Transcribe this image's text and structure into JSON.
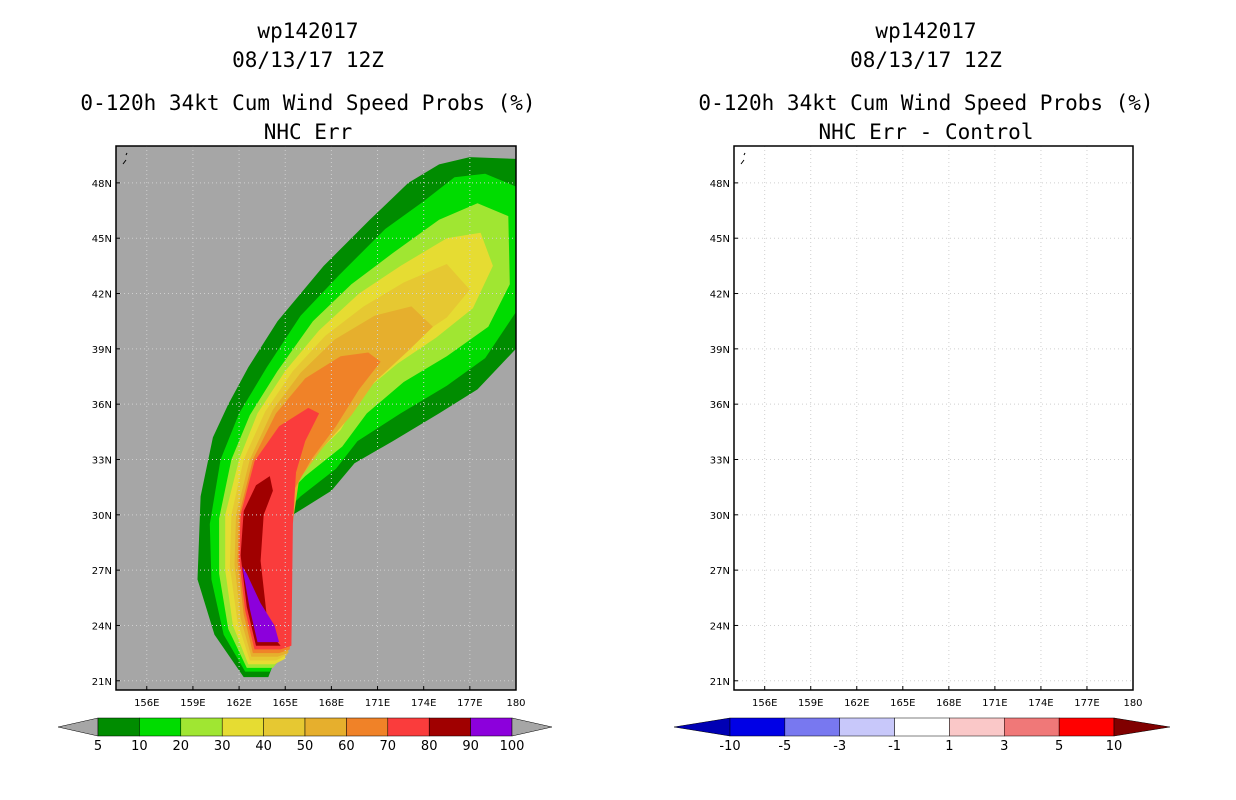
{
  "left_panel": {
    "title_storm": "wp142017",
    "title_time": "08/13/17 12Z",
    "title_product": "0-120h 34kt Cum Wind Speed Probs (%)",
    "subtitle": "NHC Err"
  },
  "right_panel": {
    "title_storm": "wp142017",
    "title_time": "08/13/17 12Z",
    "title_product": "0-120h 34kt Cum Wind Speed Probs (%)",
    "subtitle": "NHC Err - Control"
  },
  "chart_data": [
    {
      "type": "heatmap",
      "title": "0-120h 34kt Cum Wind Speed Probs (%)",
      "subtitle": "NHC Err",
      "xlabel": "",
      "ylabel": "",
      "xlim": [
        154,
        180
      ],
      "ylim": [
        20.5,
        50
      ],
      "x_ticks": [
        156,
        159,
        162,
        165,
        168,
        171,
        174,
        177,
        180
      ],
      "x_tick_labels": [
        "156E",
        "159E",
        "162E",
        "165E",
        "168E",
        "171E",
        "174E",
        "177E",
        "180"
      ],
      "y_ticks": [
        21,
        24,
        27,
        30,
        33,
        36,
        39,
        42,
        45,
        48
      ],
      "y_tick_labels": [
        "21N",
        "24N",
        "27N",
        "30N",
        "33N",
        "36N",
        "39N",
        "42N",
        "45N",
        "48N"
      ],
      "grid": true,
      "background_color": "#a6a6a6",
      "colorbar": {
        "labels": [
          "5",
          "10",
          "20",
          "30",
          "40",
          "50",
          "60",
          "70",
          "80",
          "90",
          "100"
        ],
        "colors": [
          "#008c00",
          "#00dc00",
          "#a0e632",
          "#e6dc32",
          "#e6c832",
          "#e6af2d",
          "#f08228",
          "#fa3c3c",
          "#a00000",
          "#8c00dc"
        ],
        "end_colors": [
          "#a6a6a6",
          "#a6a6a6"
        ]
      },
      "contours": [
        {
          "level": 5,
          "color": "#008c00",
          "points": [
            [
              162.3,
              21.2
            ],
            [
              160.4,
              23.5
            ],
            [
              159.3,
              26.5
            ],
            [
              159.5,
              31
            ],
            [
              160.3,
              34.2
            ],
            [
              161.3,
              36
            ],
            [
              162.6,
              38
            ],
            [
              164.5,
              40.5
            ],
            [
              167.5,
              43.5
            ],
            [
              170.5,
              46
            ],
            [
              173,
              48
            ],
            [
              175,
              49
            ],
            [
              177,
              49.4
            ],
            [
              180,
              49.3
            ],
            [
              180,
              39
            ],
            [
              177.5,
              36.8
            ],
            [
              175,
              35.5
            ],
            [
              172,
              34
            ],
            [
              169.5,
              32.8
            ],
            [
              168,
              31.3
            ],
            [
              165.5,
              30
            ],
            [
              164.6,
              29.5
            ],
            [
              164.3,
              26.5
            ],
            [
              164.5,
              22.5
            ],
            [
              163.9,
              21.2
            ]
          ]
        },
        {
          "level": 10,
          "color": "#00dc00",
          "points": [
            [
              162.4,
              21.5
            ],
            [
              161,
              23.5
            ],
            [
              160.2,
              26.5
            ],
            [
              160.1,
              29.5
            ],
            [
              160.8,
              33
            ],
            [
              162,
              35.5
            ],
            [
              163.8,
              38
            ],
            [
              166,
              40.8
            ],
            [
              168.5,
              43
            ],
            [
              171.5,
              45.5
            ],
            [
              174,
              47
            ],
            [
              176,
              48.3
            ],
            [
              178,
              48.5
            ],
            [
              180,
              47.8
            ],
            [
              180,
              41
            ],
            [
              178,
              38.5
            ],
            [
              175.5,
              37
            ],
            [
              172.5,
              35.5
            ],
            [
              169.7,
              34
            ],
            [
              168.3,
              32.5
            ],
            [
              166,
              31
            ],
            [
              164.8,
              30
            ],
            [
              164.5,
              26.5
            ],
            [
              164.6,
              22.5
            ],
            [
              164,
              21.5
            ]
          ]
        },
        {
          "level": 20,
          "color": "#a0e632",
          "points": [
            [
              162.5,
              21.7
            ],
            [
              161.3,
              23.8
            ],
            [
              160.7,
              26.8
            ],
            [
              160.7,
              29.8
            ],
            [
              161.5,
              33
            ],
            [
              162.7,
              35.4
            ],
            [
              164.5,
              37.8
            ],
            [
              166.8,
              40.5
            ],
            [
              169.3,
              42.5
            ],
            [
              172,
              44.2
            ],
            [
              175,
              46
            ],
            [
              177.5,
              46.9
            ],
            [
              179.5,
              46.2
            ],
            [
              179.6,
              42.5
            ],
            [
              178.2,
              40.2
            ],
            [
              175.5,
              38.6
            ],
            [
              172.7,
              37.2
            ],
            [
              170.3,
              35.5
            ],
            [
              168.7,
              33.7
            ],
            [
              166.3,
              32.1
            ],
            [
              165,
              31
            ],
            [
              164.8,
              26.5
            ],
            [
              164.8,
              22.3
            ],
            [
              164.2,
              21.7
            ]
          ]
        },
        {
          "level": 30,
          "color": "#e6dc32",
          "points": [
            [
              162.6,
              21.9
            ],
            [
              161.6,
              24
            ],
            [
              161.1,
              27
            ],
            [
              161.1,
              30
            ],
            [
              162,
              33
            ],
            [
              163.2,
              35.5
            ],
            [
              165,
              37.8
            ],
            [
              167.2,
              40
            ],
            [
              169.8,
              42
            ],
            [
              172.5,
              43.5
            ],
            [
              175.5,
              45
            ],
            [
              177.7,
              45.3
            ],
            [
              178.5,
              43.5
            ],
            [
              177.2,
              41.2
            ],
            [
              174.8,
              39.6
            ],
            [
              172.3,
              38.2
            ],
            [
              170,
              36.6
            ],
            [
              168.6,
              34.6
            ],
            [
              166.4,
              32.8
            ],
            [
              165.3,
              31.5
            ],
            [
              165,
              27
            ],
            [
              165,
              22.2
            ],
            [
              164.3,
              21.9
            ]
          ]
        },
        {
          "level": 40,
          "color": "#e6c832",
          "points": [
            [
              162.7,
              22.1
            ],
            [
              161.9,
              24.2
            ],
            [
              161.4,
              27.2
            ],
            [
              161.5,
              30
            ],
            [
              162.3,
              33
            ],
            [
              163.7,
              35.6
            ],
            [
              165.5,
              37.8
            ],
            [
              167.6,
              39.7
            ],
            [
              170.1,
              41.3
            ],
            [
              172.7,
              42.6
            ],
            [
              175.5,
              43.6
            ],
            [
              177,
              42.2
            ],
            [
              175.5,
              40.7
            ],
            [
              173,
              39.3
            ],
            [
              170.8,
              37.8
            ],
            [
              169.2,
              36.1
            ],
            [
              167.2,
              34.2
            ],
            [
              165.8,
              32.4
            ],
            [
              165.2,
              28
            ],
            [
              165.1,
              22.4
            ],
            [
              164.4,
              22.1
            ]
          ]
        },
        {
          "level": 50,
          "color": "#e6af2d",
          "points": [
            [
              162.8,
              22.3
            ],
            [
              162.1,
              24.4
            ],
            [
              161.7,
              27.3
            ],
            [
              161.8,
              30
            ],
            [
              162.7,
              33
            ],
            [
              164.2,
              35.7
            ],
            [
              166,
              37.7
            ],
            [
              168.2,
              39.5
            ],
            [
              170.8,
              40.8
            ],
            [
              173.2,
              41.3
            ],
            [
              174.6,
              40.2
            ],
            [
              173,
              38.9
            ],
            [
              170.8,
              37.2
            ],
            [
              169.3,
              35.4
            ],
            [
              167.4,
              33.6
            ],
            [
              165.9,
              31.9
            ],
            [
              165.3,
              28.5
            ],
            [
              165.2,
              22.5
            ],
            [
              164.5,
              22.3
            ]
          ]
        },
        {
          "level": 60,
          "color": "#f08228",
          "points": [
            [
              162.9,
              22.5
            ],
            [
              162.3,
              24.6
            ],
            [
              161.9,
              27.5
            ],
            [
              162,
              30
            ],
            [
              162.9,
              33
            ],
            [
              164.4,
              35.5
            ],
            [
              166.3,
              37.4
            ],
            [
              168.6,
              38.6
            ],
            [
              170.4,
              38.8
            ],
            [
              171.2,
              38.3
            ],
            [
              169.8,
              36.8
            ],
            [
              168.3,
              34.8
            ],
            [
              166.7,
              33
            ],
            [
              165.6,
              31.4
            ],
            [
              165.4,
              28.5
            ],
            [
              165.3,
              22.7
            ],
            [
              164.6,
              22.5
            ]
          ]
        },
        {
          "level": 70,
          "color": "#fa3c3c",
          "points": [
            [
              163,
              22.7
            ],
            [
              162.4,
              24.8
            ],
            [
              162,
              27.6
            ],
            [
              162.1,
              30
            ],
            [
              163,
              32.9
            ],
            [
              164.6,
              34.8
            ],
            [
              166.5,
              35.8
            ],
            [
              167.2,
              35.5
            ],
            [
              166.3,
              34
            ],
            [
              165.7,
              32.3
            ],
            [
              165.5,
              29.5
            ],
            [
              165.4,
              22.9
            ],
            [
              164.7,
              22.7
            ]
          ]
        },
        {
          "level": 80,
          "color": "#a00000",
          "points": [
            [
              163.1,
              22.9
            ],
            [
              162.5,
              25
            ],
            [
              162.1,
              27.8
            ],
            [
              162.3,
              30.2
            ],
            [
              163.1,
              31.6
            ],
            [
              164,
              32.1
            ],
            [
              164.2,
              31.3
            ],
            [
              163.6,
              30
            ],
            [
              163.4,
              27.5
            ],
            [
              163.8,
              24.5
            ],
            [
              164.4,
              23.2
            ],
            [
              164.7,
              22.9
            ]
          ]
        },
        {
          "level": 90,
          "color": "#8c00dc",
          "points": [
            [
              163.2,
              23.1
            ],
            [
              162.7,
              24.9
            ],
            [
              162.2,
              27.2
            ],
            [
              162.5,
              26.8
            ],
            [
              163.4,
              25.2
            ],
            [
              164.3,
              24
            ],
            [
              164.6,
              23.1
            ]
          ]
        }
      ]
    },
    {
      "type": "heatmap",
      "title": "0-120h 34kt Cum Wind Speed Probs (%)",
      "subtitle": "NHC Err - Control",
      "xlabel": "",
      "ylabel": "",
      "xlim": [
        154,
        180
      ],
      "ylim": [
        20.5,
        50
      ],
      "x_ticks": [
        156,
        159,
        162,
        165,
        168,
        171,
        174,
        177,
        180
      ],
      "x_tick_labels": [
        "156E",
        "159E",
        "162E",
        "165E",
        "168E",
        "171E",
        "174E",
        "177E",
        "180"
      ],
      "y_ticks": [
        21,
        24,
        27,
        30,
        33,
        36,
        39,
        42,
        45,
        48
      ],
      "y_tick_labels": [
        "21N",
        "24N",
        "27N",
        "30N",
        "33N",
        "36N",
        "39N",
        "42N",
        "45N",
        "48N"
      ],
      "grid": true,
      "background_color": "#ffffff",
      "colorbar": {
        "labels": [
          "-10",
          "-5",
          "-3",
          "-1",
          "1",
          "3",
          "5",
          "10"
        ],
        "colors": [
          "#0000e6",
          "#7878f0",
          "#c8c8fa",
          "#ffffff",
          "#fac8c8",
          "#f07878",
          "#ff0000"
        ],
        "end_colors": [
          "#0000b4",
          "#800000"
        ]
      },
      "contours": []
    }
  ]
}
